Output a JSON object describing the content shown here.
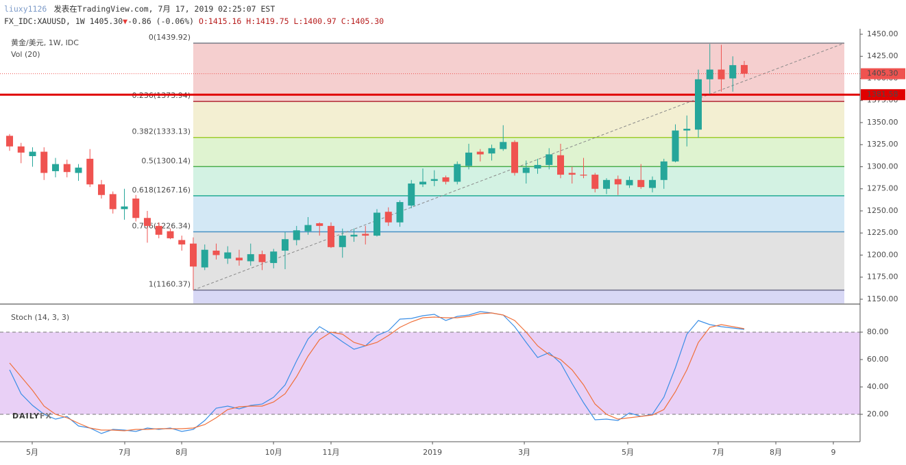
{
  "header": {
    "user": "liuxy1126",
    "published": "发表在TradingView.com, 7月 17, 2019 02:25:07 EST",
    "symbol": "FX_IDC:XAUUSD, 1W",
    "last": "1405.30",
    "arrow": "▼",
    "change": "-0.86 (-0.06%)",
    "ohlc": "O:1415.16 H:1419.75 L:1400.97 C:1405.30"
  },
  "chart_data": {
    "type": "candlestick",
    "symbol_label": "黄金/美元, 1W, IDC",
    "volume_label": "Vol (20)",
    "watermark": [
      "DAILY",
      "FX"
    ],
    "up_color": "#26a69a",
    "down_color": "#ef5350",
    "open": [
      1335,
      1323,
      1312,
      1317,
      1295,
      1303,
      1293,
      1309,
      1280,
      1269,
      1252,
      1264,
      1242,
      1233,
      1227,
      1217,
      1213,
      1186,
      1205,
      1196,
      1197,
      1193,
      1201,
      1191,
      1205,
      1217,
      1227,
      1236,
      1233,
      1209,
      1221,
      1224,
      1222,
      1249,
      1237,
      1256,
      1280,
      1284,
      1288,
      1283,
      1301,
      1317,
      1315,
      1320,
      1328,
      1293,
      1298,
      1302,
      1313,
      1293,
      1291,
      1291,
      1275,
      1286,
      1279,
      1285,
      1276,
      1285,
      1306,
      1341,
      1342,
      1399,
      1410,
      1400,
      1415.16
    ],
    "high": [
      1337,
      1327,
      1322,
      1322,
      1310,
      1308,
      1303,
      1320,
      1285,
      1272,
      1275,
      1268,
      1250,
      1237,
      1230,
      1222,
      1220,
      1212,
      1213,
      1210,
      1206,
      1213,
      1205,
      1207,
      1226,
      1233,
      1243,
      1237,
      1237,
      1230,
      1230,
      1233,
      1252,
      1254,
      1262,
      1285,
      1298,
      1296,
      1290,
      1306,
      1326,
      1320,
      1325,
      1347,
      1330,
      1307,
      1309,
      1321,
      1326,
      1300,
      1310,
      1293,
      1287,
      1290,
      1289,
      1303,
      1289,
      1309,
      1348,
      1358,
      1410,
      1439,
      1438,
      1425,
      1419.75
    ],
    "low": [
      1318,
      1304,
      1300,
      1285,
      1288,
      1288,
      1284,
      1277,
      1264,
      1247,
      1240,
      1238,
      1214,
      1219,
      1218,
      1205,
      1160.37,
      1183,
      1195,
      1190,
      1188,
      1188,
      1183,
      1185,
      1184,
      1211,
      1223,
      1222,
      1208,
      1197,
      1215,
      1212,
      1221,
      1233,
      1232,
      1253,
      1277,
      1278,
      1280,
      1280,
      1297,
      1306,
      1307,
      1318,
      1290,
      1281,
      1292,
      1297,
      1287,
      1281,
      1287,
      1271,
      1269,
      1268,
      1276,
      1275,
      1271,
      1275,
      1305,
      1323,
      1333,
      1382,
      1385,
      1385,
      1400.97
    ],
    "close": [
      1323,
      1316,
      1317,
      1293,
      1303,
      1294,
      1299,
      1280,
      1268,
      1252,
      1255,
      1242,
      1233,
      1223,
      1219,
      1212,
      1187,
      1206,
      1200,
      1203,
      1194,
      1201,
      1192,
      1204,
      1218,
      1228,
      1234,
      1233,
      1209,
      1222,
      1223,
      1222,
      1248,
      1237,
      1260,
      1281,
      1283,
      1286,
      1283,
      1303,
      1316,
      1314,
      1321,
      1328,
      1293,
      1299,
      1302,
      1314,
      1291,
      1291,
      1290,
      1275,
      1285,
      1280,
      1285,
      1277,
      1285,
      1306,
      1341,
      1343,
      1399,
      1410,
      1399,
      1415,
      1405.3
    ],
    "xlim": [
      -0.836,
      74.09
    ],
    "ylim": [
      1145.3,
      1456.2
    ],
    "yticks": [
      {
        "value": 1150,
        "label": "1150.00"
      },
      {
        "value": 1175,
        "label": "1175.00"
      },
      {
        "value": 1200,
        "label": "1200.00"
      },
      {
        "value": 1225,
        "label": "1225.00"
      },
      {
        "value": 1250,
        "label": "1250.00"
      },
      {
        "value": 1275,
        "label": "1275.00"
      },
      {
        "value": 1300,
        "label": "1300.00"
      },
      {
        "value": 1325,
        "label": "1325.00"
      },
      {
        "value": 1350,
        "label": "1350.00"
      },
      {
        "value": 1375,
        "label": "1375.00"
      },
      {
        "value": 1400,
        "label": "1400.00"
      },
      {
        "value": 1425,
        "label": "1425.00"
      },
      {
        "value": 1450,
        "label": "1450.00"
      }
    ],
    "xticks": [
      {
        "value": 1.97,
        "label": "5月"
      },
      {
        "value": 10.03,
        "label": "7月"
      },
      {
        "value": 14.99,
        "label": "8月"
      },
      {
        "value": 22.99,
        "label": "10月"
      },
      {
        "value": 28.0,
        "label": "11月"
      },
      {
        "value": 36.84,
        "label": "2019"
      },
      {
        "value": 44.84,
        "label": "3月"
      },
      {
        "value": 53.85,
        "label": "5月"
      },
      {
        "value": 61.73,
        "label": "7月"
      },
      {
        "value": 66.75,
        "label": "8月"
      },
      {
        "value": 71.76,
        "label": "9"
      }
    ],
    "fib_levels": [
      {
        "value": 1439.92,
        "label": "0(1439.92)",
        "color": "#787b86",
        "fill": "#f5cfcf"
      },
      {
        "value": 1373.94,
        "label": "0.236(1373.94)",
        "color": "#b22833",
        "fill": "#f3efd2"
      },
      {
        "value": 1333.13,
        "label": "0.382(1333.13)",
        "color": "#9fcc2e",
        "fill": "#dff3d0"
      },
      {
        "value": 1300.14,
        "label": "0.5(1300.14)",
        "color": "#4caf50",
        "fill": "#d3f2e3"
      },
      {
        "value": 1267.16,
        "label": "0.618(1267.16)",
        "color": "#22ab94",
        "fill": "#d3e8f5"
      },
      {
        "value": 1226.34,
        "label": "0.786(1226.34)",
        "color": "#4a90c2",
        "fill": "#e2e2e2"
      },
      {
        "value": 1160.37,
        "label": "1(1160.37)",
        "color": "#6e6e8a",
        "fill": "#d8d8f5"
      }
    ],
    "horizontal_line": {
      "value": 1381.58,
      "label": "1381.58",
      "color": "#e00000"
    },
    "last_price": {
      "value": 1405.3,
      "label": "1405.30",
      "color": "#ef5350"
    },
    "stochastic": {
      "title": "Stoch (14, 3, 3)",
      "ylim": [
        0,
        100
      ],
      "bands": [
        20,
        80
      ],
      "band_color": "#e9d0f6",
      "yticks": [
        {
          "value": 20,
          "label": "20.00"
        },
        {
          "value": 40,
          "label": "40.00"
        },
        {
          "value": 60,
          "label": "60.00"
        },
        {
          "value": 80,
          "label": "80.00"
        }
      ],
      "series": [
        {
          "color": "#3a8ee6",
          "values": [
            52.5,
            35,
            26.5,
            20,
            16.5,
            18.5,
            11.5,
            10,
            6,
            9,
            8.5,
            7.5,
            10,
            9,
            10,
            7.5,
            9,
            15.5,
            24.5,
            26,
            24,
            26.5,
            27.5,
            32.5,
            41.5,
            59,
            75,
            84,
            79,
            73,
            67.5,
            70,
            77.5,
            81,
            89.5,
            90,
            92,
            93,
            88.5,
            91.5,
            92.5,
            95,
            94,
            92.5,
            84,
            72.5,
            61.5,
            65,
            57.5,
            42.5,
            28.5,
            16,
            16.5,
            15.5,
            21,
            18.5,
            20,
            32.5,
            54,
            78.5,
            88.5,
            85.5,
            84,
            83,
            82
          ]
        },
        {
          "color": "#f0703a",
          "values": [
            57.5,
            47.5,
            37.5,
            26,
            20,
            17.5,
            13.5,
            10,
            8.5,
            8.5,
            8,
            9,
            9,
            9.5,
            9.5,
            9.5,
            10,
            12.5,
            17.5,
            23.5,
            25.5,
            26,
            26,
            29,
            35,
            47.5,
            62.5,
            74.5,
            80,
            78.5,
            72.5,
            70,
            72.5,
            77.5,
            83.5,
            87.5,
            90.5,
            91,
            90.5,
            90.5,
            91.5,
            93.5,
            94,
            92.5,
            88.5,
            80,
            70,
            63.5,
            60,
            52.5,
            41.5,
            27.5,
            20,
            16.5,
            17.5,
            18.5,
            19.5,
            23.5,
            36.5,
            52.5,
            72.5,
            83.5,
            85.5,
            84,
            82.5
          ]
        }
      ]
    }
  }
}
